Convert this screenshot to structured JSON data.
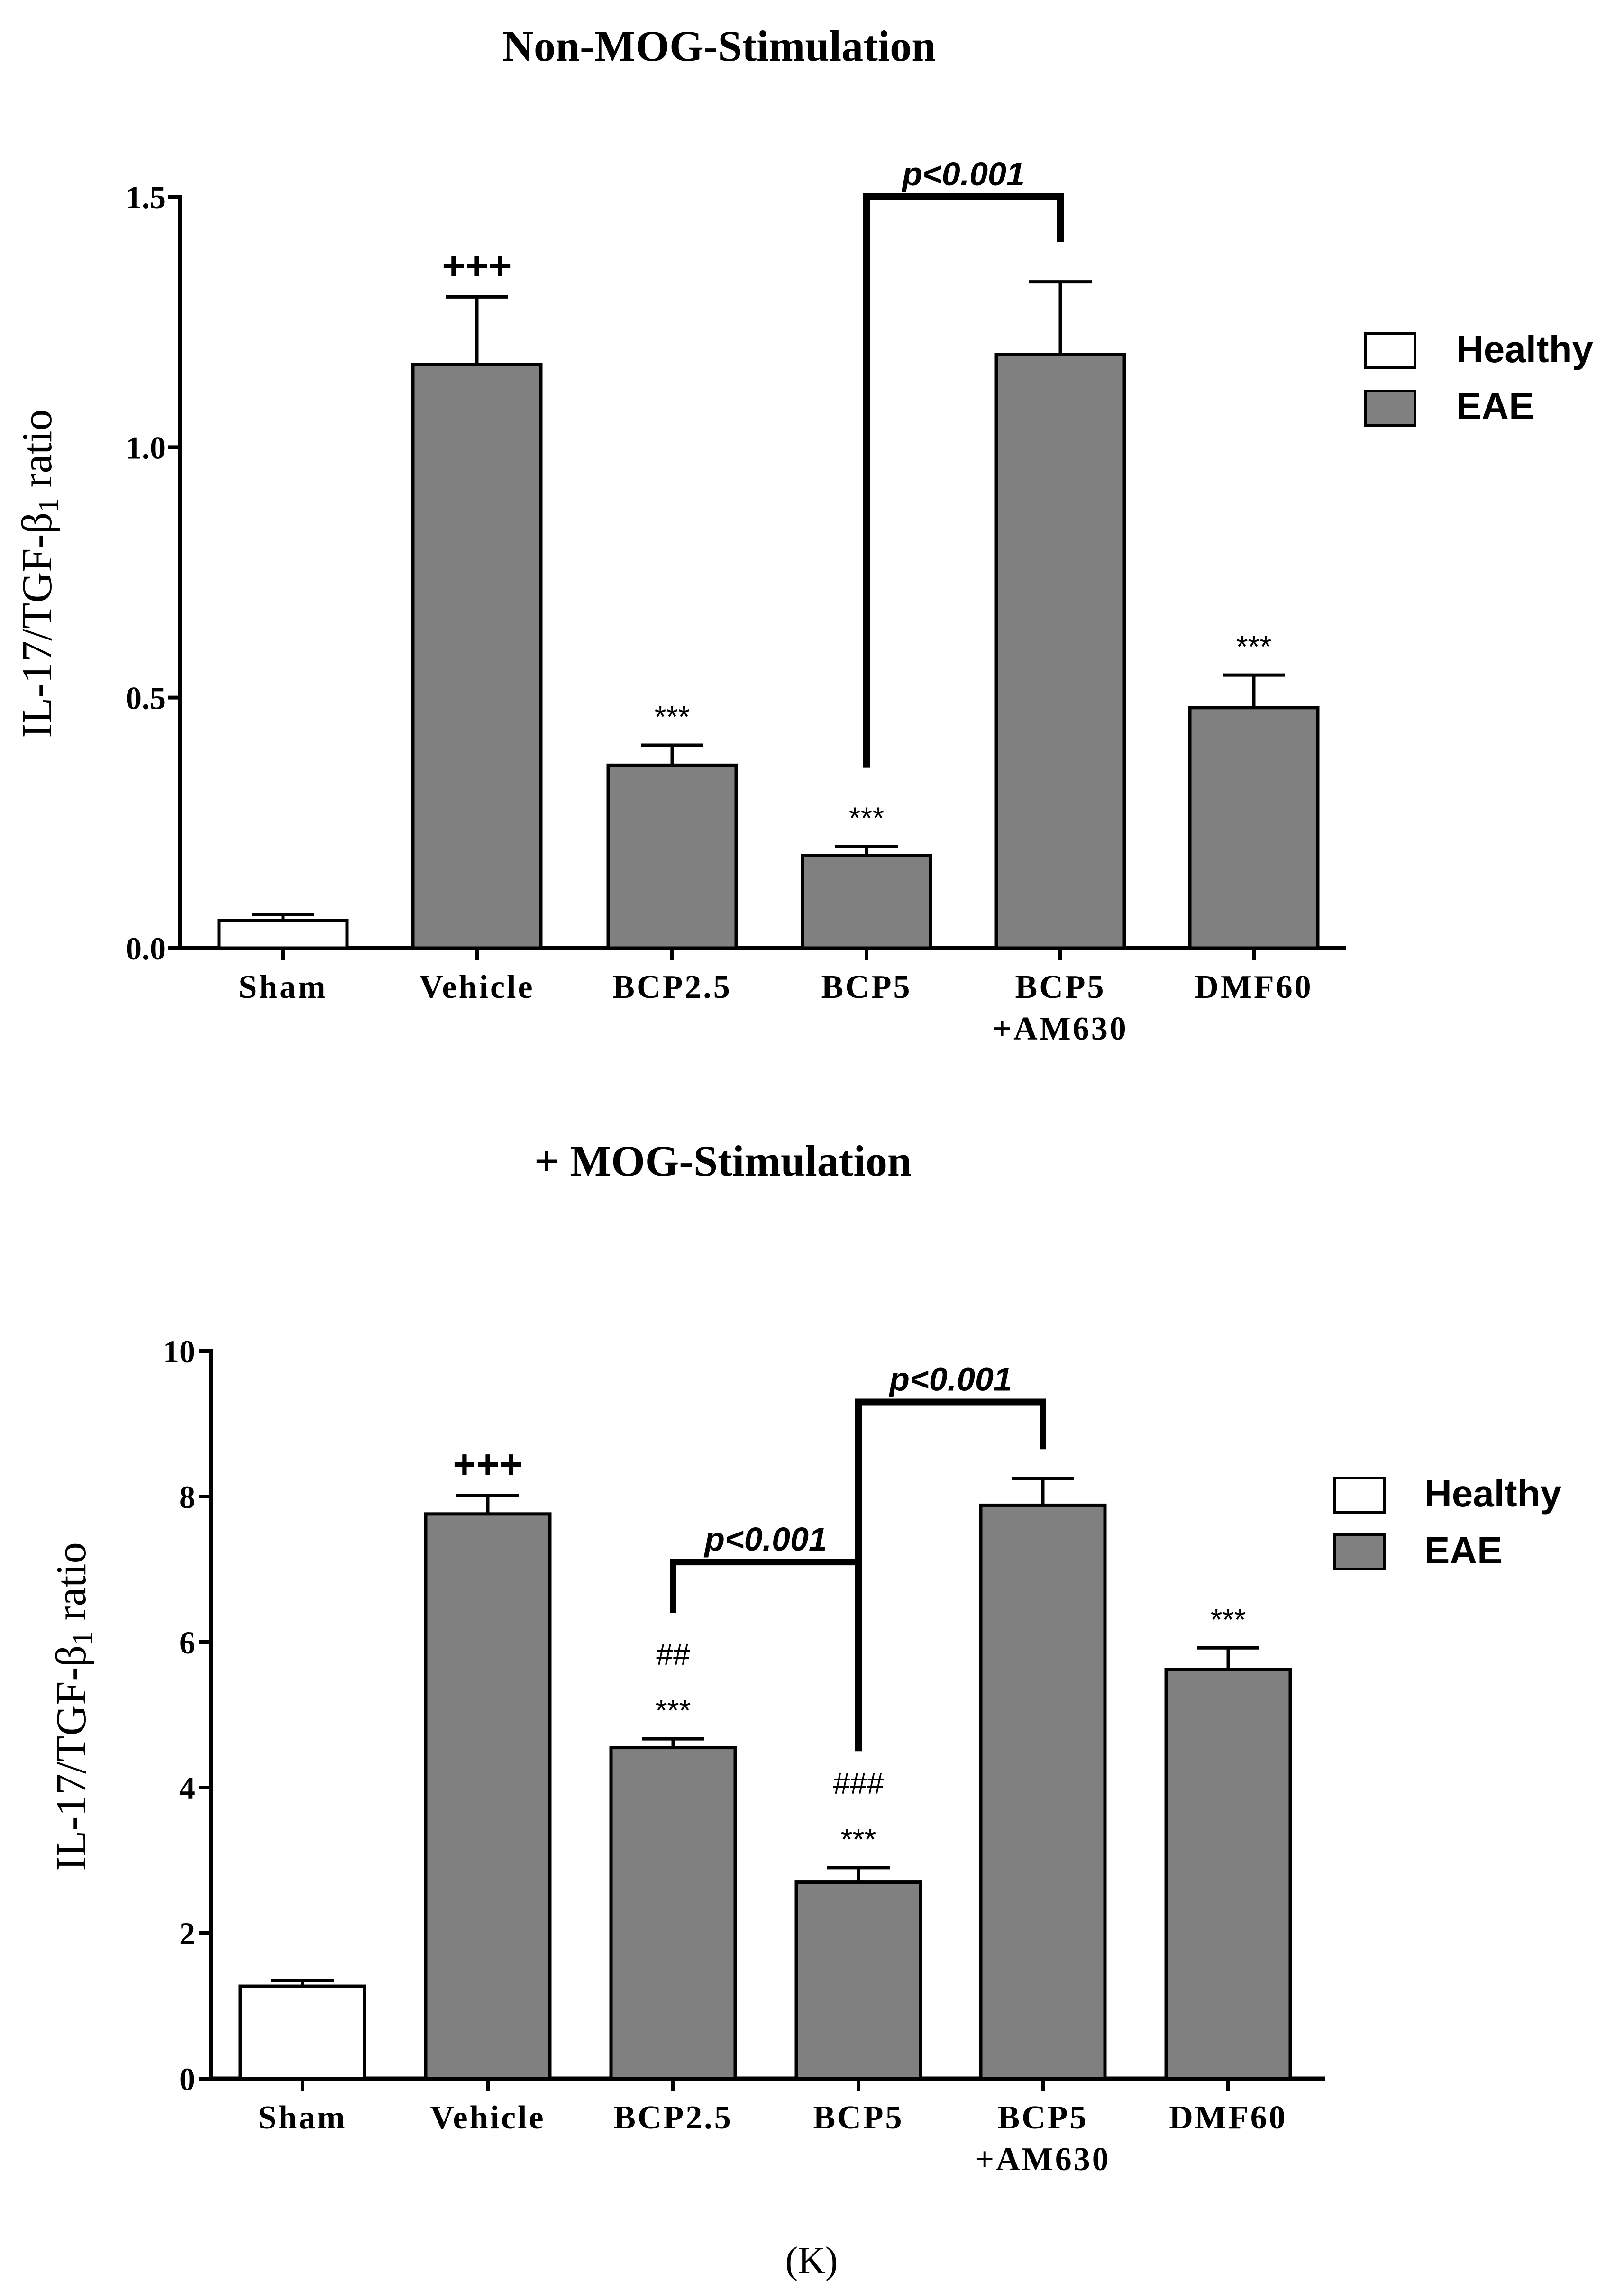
{
  "chart_data": [
    {
      "type": "bar",
      "title": "Non-MOG-Stimulation",
      "ylabel": {
        "prefix": "IL-17/TGF-β",
        "subscript": "1",
        "suffix": " ratio"
      },
      "xlabel": "",
      "ylim": [
        0,
        1.5
      ],
      "yticks": [
        "0.0",
        "0.5",
        "1.0",
        "1.5"
      ],
      "ytick_values": [
        0,
        0.5,
        1.0,
        1.5
      ],
      "categories": [
        {
          "lines": [
            "Sham"
          ]
        },
        {
          "lines": [
            "Vehicle"
          ]
        },
        {
          "lines": [
            "BCP2.5"
          ]
        },
        {
          "lines": [
            "BCP5"
          ]
        },
        {
          "lines": [
            "BCP5",
            "+AM630"
          ]
        },
        {
          "lines": [
            "DMF60"
          ]
        }
      ],
      "series": [
        {
          "name": "Healthy",
          "color": "#ffffff"
        },
        {
          "name": "EAE",
          "color": "#808080"
        }
      ],
      "values": [
        0.055,
        1.165,
        0.365,
        0.185,
        1.185,
        0.48
      ],
      "errors": [
        0.012,
        0.135,
        0.04,
        0.018,
        0.145,
        0.065
      ],
      "groups": [
        "Healthy",
        "EAE",
        "EAE",
        "EAE",
        "EAE",
        "EAE"
      ],
      "annotations": [
        {
          "bar": 1,
          "lines": [
            "+++"
          ],
          "style": "plus"
        },
        {
          "bar": 2,
          "lines": [
            "***"
          ],
          "style": "star"
        },
        {
          "bar": 3,
          "lines": [
            "***"
          ],
          "style": "star"
        },
        {
          "bar": 5,
          "lines": [
            "***"
          ],
          "style": "star"
        }
      ],
      "brackets": [
        {
          "from": 3,
          "to": 4,
          "label": "p<0.001",
          "level": 1.5,
          "left_end": 0.36,
          "right_end": 1.41
        }
      ],
      "legend": "right"
    },
    {
      "type": "bar",
      "title": "+ MOG-Stimulation",
      "ylabel": {
        "prefix": "IL-17/TGF-β",
        "subscript": "1",
        "suffix": " ratio"
      },
      "xlabel": "",
      "ylim": [
        0,
        10
      ],
      "yticks": [
        "0",
        "2",
        "4",
        "6",
        "8",
        "10"
      ],
      "ytick_values": [
        0,
        2,
        4,
        6,
        8,
        10
      ],
      "categories": [
        {
          "lines": [
            "Sham"
          ]
        },
        {
          "lines": [
            "Vehicle"
          ]
        },
        {
          "lines": [
            "BCP2.5"
          ]
        },
        {
          "lines": [
            "BCP5"
          ]
        },
        {
          "lines": [
            "BCP5",
            "+AM630"
          ]
        },
        {
          "lines": [
            "DMF60"
          ]
        }
      ],
      "series": [
        {
          "name": "Healthy",
          "color": "#ffffff"
        },
        {
          "name": "EAE",
          "color": "#808080"
        }
      ],
      "values": [
        1.27,
        7.76,
        4.55,
        2.7,
        7.88,
        5.62
      ],
      "errors": [
        0.08,
        0.25,
        0.12,
        0.2,
        0.37,
        0.3
      ],
      "groups": [
        "Healthy",
        "EAE",
        "EAE",
        "EAE",
        "EAE",
        "EAE"
      ],
      "annotations": [
        {
          "bar": 1,
          "lines": [
            "+++"
          ],
          "style": "plus"
        },
        {
          "bar": 2,
          "lines": [
            "##",
            "***"
          ],
          "style": "star"
        },
        {
          "bar": 3,
          "lines": [
            "###",
            "***"
          ],
          "style": "star"
        },
        {
          "bar": 5,
          "lines": [
            "***"
          ],
          "style": "star"
        }
      ],
      "brackets": [
        {
          "from": 2,
          "to": 3,
          "label": "p<0.001",
          "level": 7.1,
          "left_end": 6.4,
          "right_end": 4.55
        },
        {
          "from": 3,
          "to": 4,
          "label": "p<0.001",
          "level": 9.3,
          "left_end": 4.5,
          "right_end": 8.65
        }
      ],
      "legend": "right"
    }
  ],
  "panel_label": "(K)"
}
